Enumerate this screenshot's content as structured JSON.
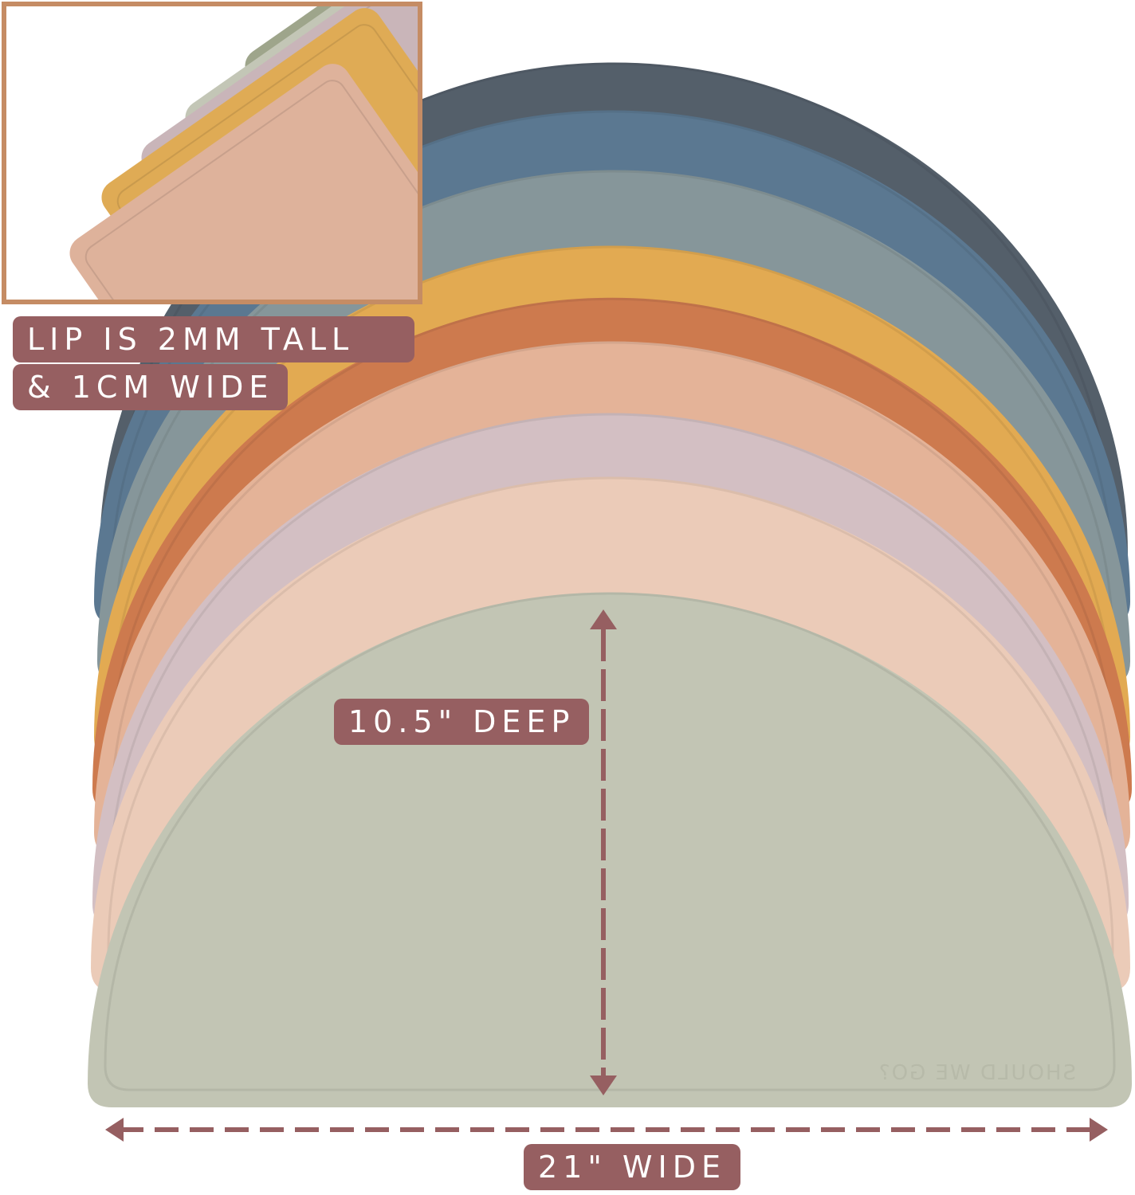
{
  "labels": {
    "lip_line1": "LIP IS 2MM TALL",
    "lip_line2": "& 1CM WIDE",
    "depth": "10.5\" DEEP",
    "width": "21\" WIDE"
  },
  "emboss_logo": "SHOULD WE GO?",
  "colors": {
    "label_bg": "#965f61",
    "inset_border": "#c58c64",
    "mats": [
      "#545f6a",
      "#5b7891",
      "#86969a",
      "#e2aa52",
      "#cd7a4e",
      "#e4b398",
      "#d3bfc3",
      "#ebcbb8",
      "#c2c5b4"
    ],
    "inset_mats": [
      "#9ea58b",
      "#c3c6b6",
      "#c9b5b9",
      "#dfab55",
      "#deb29b"
    ]
  }
}
